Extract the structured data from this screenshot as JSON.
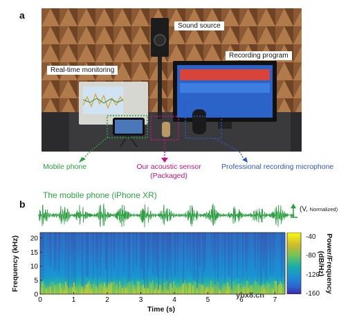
{
  "panels": {
    "a": "a",
    "b": "b"
  },
  "photo": {
    "labels": {
      "sound_source": "Sound source",
      "recording_program": "Recording program",
      "realtime_monitoring": "Real-time monitoring"
    }
  },
  "captions": {
    "mobile_phone": "Mobile phone",
    "sensor_line1": "Our acoustic sensor",
    "sensor_line2": "(Packaged)",
    "microphone": "Professional recording microphone"
  },
  "colors": {
    "phone_green": "#2ea043",
    "sensor_magenta": "#c2187a",
    "mic_blue": "#2f58b8"
  },
  "waveform": {
    "title": "The mobile phone (iPhone XR)",
    "scale_label_main": "(V,",
    "scale_label_sub": "Normalized)",
    "color": "#2ea043"
  },
  "chart_data": {
    "type": "heatmap",
    "title": "",
    "xlabel": "Time (s)",
    "ylabel": "Frequency (kHz)",
    "xlim": [
      0,
      7.3
    ],
    "ylim": [
      0,
      22
    ],
    "x_ticks": [
      0,
      1,
      2,
      3,
      4,
      5,
      6,
      7
    ],
    "y_ticks": [
      0,
      5,
      10,
      15,
      20
    ],
    "colorbar": {
      "label_line1": "Power/Frequency",
      "label_line2": "(dB/Hz)",
      "ticks": [
        -40,
        -80,
        -120,
        -160
      ],
      "tick_labels": [
        "-40",
        "-80",
        "-120",
        "-160"
      ],
      "range": [
        -160,
        -30
      ],
      "colormap": "parula"
    }
  },
  "watermark": "ybx8.cn"
}
